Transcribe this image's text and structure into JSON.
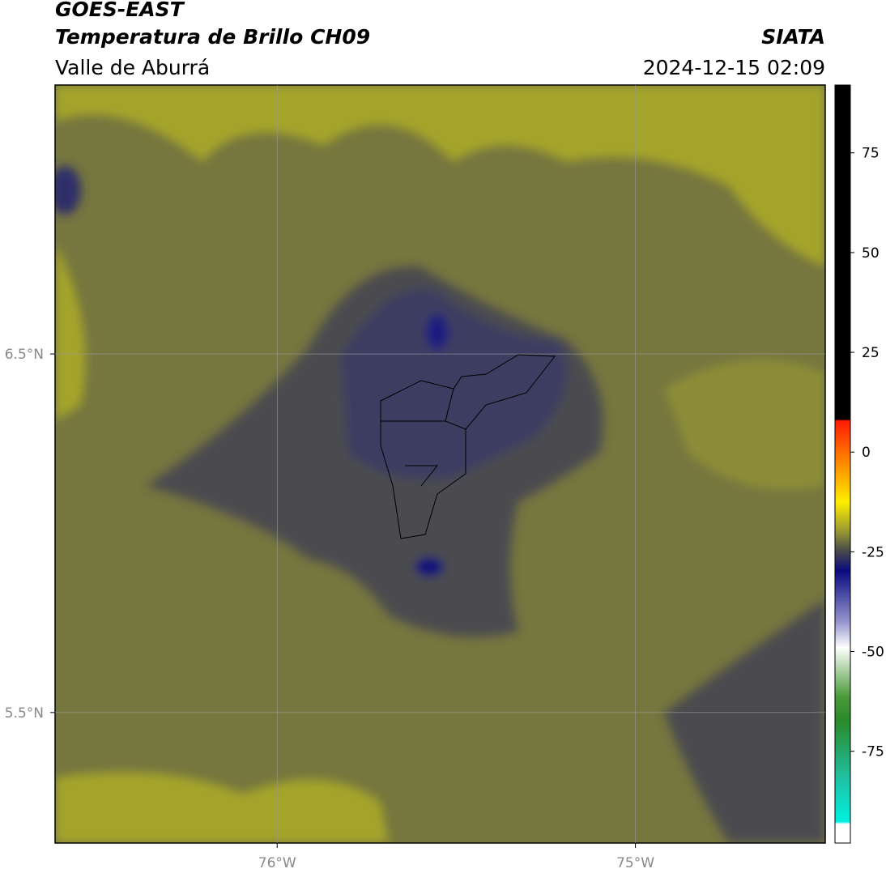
{
  "header": {
    "title": "GOES-EAST",
    "subtitle": "Temperatura de Brillo CH09",
    "region": "Valle de Aburrá",
    "source": "SIATA",
    "date": "2024-12-15 02:09"
  },
  "map": {
    "xlim": [
      -76.62,
      -74.47
    ],
    "ylim": [
      5.136,
      7.25
    ],
    "xticks": [
      {
        "value": -76,
        "label": "76°W"
      },
      {
        "value": -75,
        "label": "75°W"
      }
    ],
    "yticks": [
      {
        "value": 6.5,
        "label": "6.5°N"
      },
      {
        "value": 5.5,
        "label": "5.5°N"
      }
    ]
  },
  "colorbar": {
    "lim": [
      -98,
      92
    ],
    "ticks": [
      75,
      50,
      25,
      0,
      -25,
      -50,
      -75
    ]
  }
}
